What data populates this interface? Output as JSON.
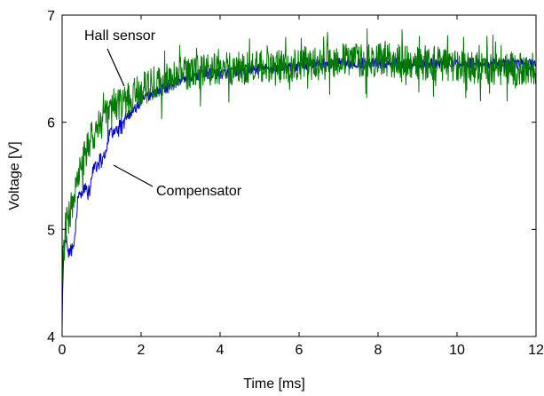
{
  "chart_data": {
    "type": "line",
    "title": "",
    "xlabel": "Time [ms]",
    "ylabel": "Voltage [V]",
    "xlim": [
      0,
      12
    ],
    "ylim": [
      4,
      7
    ],
    "xticks": [
      0,
      2,
      4,
      6,
      8,
      10,
      12
    ],
    "yticks": [
      4,
      5,
      6,
      7
    ],
    "grid": false,
    "series": [
      {
        "name": "Compensator",
        "color": "#0000cc",
        "envelope": {
          "x": [
            0,
            0.02,
            0.05,
            0.1,
            0.2,
            0.3,
            0.4,
            0.5,
            0.6,
            0.7,
            0.8,
            0.9,
            1.0,
            1.1,
            1.2,
            1.4,
            1.6,
            1.8,
            2.0,
            2.2,
            2.5,
            2.8,
            3.0,
            3.5,
            4.0,
            4.5,
            5.0,
            5.5,
            6.0,
            6.5,
            7.0,
            7.5,
            8.0,
            8.5,
            9.0,
            9.5,
            10.0,
            10.5,
            11.0,
            11.5,
            12.0
          ],
          "y": [
            4.2,
            4.55,
            4.85,
            4.9,
            4.8,
            4.85,
            5.3,
            5.35,
            5.4,
            5.35,
            5.6,
            5.65,
            5.7,
            5.7,
            5.9,
            5.95,
            6.05,
            6.1,
            6.2,
            6.25,
            6.3,
            6.35,
            6.4,
            6.45,
            6.45,
            6.48,
            6.5,
            6.5,
            6.52,
            6.55,
            6.55,
            6.55,
            6.55,
            6.55,
            6.55,
            6.55,
            6.55,
            6.55,
            6.55,
            6.55,
            6.55
          ]
        },
        "noise_amplitude": 0.05
      },
      {
        "name": "Hall sensor",
        "color": "#007700",
        "envelope": {
          "x": [
            0,
            0.02,
            0.05,
            0.1,
            0.2,
            0.3,
            0.4,
            0.5,
            0.6,
            0.7,
            0.8,
            0.9,
            1.0,
            1.2,
            1.4,
            1.6,
            1.8,
            2.0,
            2.2,
            2.5,
            2.8,
            3.0,
            3.5,
            4.0,
            4.5,
            5.0,
            5.5,
            6.0,
            6.5,
            7.0,
            7.5,
            8.0,
            8.5,
            9.0,
            9.5,
            10.0,
            10.5,
            11.0,
            11.5,
            12.0
          ],
          "y": [
            4.6,
            4.7,
            4.85,
            5.05,
            5.15,
            5.3,
            5.45,
            5.6,
            5.7,
            5.8,
            5.9,
            5.95,
            6.0,
            6.1,
            6.15,
            6.2,
            6.25,
            6.3,
            6.35,
            6.38,
            6.4,
            6.45,
            6.47,
            6.5,
            6.5,
            6.52,
            6.52,
            6.55,
            6.55,
            6.58,
            6.58,
            6.58,
            6.57,
            6.55,
            6.55,
            6.53,
            6.52,
            6.5,
            6.5,
            6.5
          ]
        },
        "noise_amplitude": 0.16
      }
    ],
    "annotations": [
      {
        "text": "Hall sensor",
        "target_series": "Hall sensor"
      },
      {
        "text": "Compensator",
        "target_series": "Compensator"
      }
    ]
  }
}
